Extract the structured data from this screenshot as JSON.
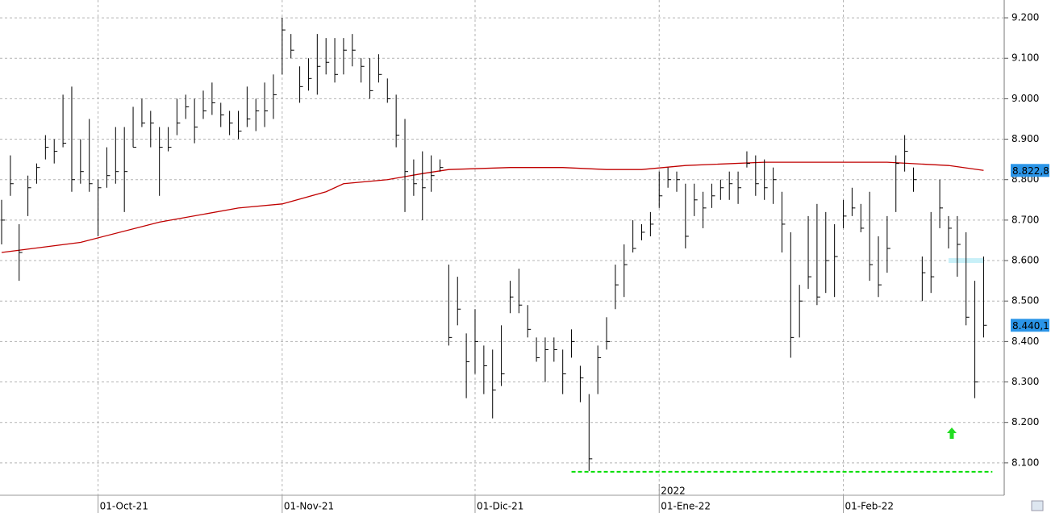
{
  "chart_data": {
    "type": "ohlc",
    "bar_color": "#000000",
    "categories": [
      null,
      null,
      null,
      null,
      null,
      null,
      null,
      null,
      null,
      null,
      null,
      "01-Oct-21",
      null,
      null,
      null,
      null,
      null,
      null,
      null,
      null,
      null,
      null,
      null,
      null,
      null,
      null,
      null,
      null,
      null,
      null,
      null,
      null,
      "01-Nov-21",
      null,
      null,
      null,
      null,
      null,
      null,
      null,
      null,
      null,
      null,
      null,
      null,
      null,
      null,
      null,
      null,
      null,
      null,
      null,
      null,
      null,
      "01-Dic-21",
      null,
      null,
      null,
      null,
      null,
      null,
      null,
      null,
      null,
      null,
      null,
      null,
      null,
      null,
      null,
      null,
      null,
      null,
      null,
      null,
      "01-Ene-22",
      null,
      null,
      null,
      null,
      null,
      null,
      null,
      null,
      null,
      null,
      null,
      null,
      null,
      null,
      null,
      null,
      null,
      null,
      null,
      null,
      "01-Feb-22",
      null,
      null,
      null,
      null,
      null,
      null,
      null,
      null,
      null,
      null,
      null,
      null,
      null,
      null,
      null,
      null
    ],
    "year_label": "2022",
    "high": [
      8750,
      8860,
      8690,
      8810,
      8840,
      8910,
      8900,
      9010,
      9030,
      8900,
      8950,
      8800,
      8880,
      8930,
      8930,
      8980,
      9000,
      8970,
      8930,
      8930,
      9000,
      9010,
      9000,
      9020,
      9040,
      8990,
      8970,
      8970,
      9030,
      9000,
      9040,
      9060,
      9200,
      9160,
      9080,
      9100,
      9160,
      9150,
      9150,
      9150,
      9160,
      9100,
      9100,
      9110,
      9050,
      9010,
      8950,
      8850,
      8870,
      8860,
      8850,
      8590,
      8560,
      8420,
      8480,
      8390,
      8380,
      8440,
      8550,
      8580,
      8490,
      8410,
      8410,
      8410,
      8380,
      8430,
      8340,
      8270,
      8390,
      8460,
      8590,
      8640,
      8700,
      8690,
      8720,
      8820,
      8830,
      8820,
      8790,
      8790,
      8770,
      8790,
      8800,
      8820,
      8820,
      8870,
      8860,
      8850,
      8830,
      8770,
      8670,
      8540,
      8710,
      8740,
      8720,
      8690,
      8750,
      8780,
      8740,
      8770,
      8660,
      8710,
      8860,
      8910,
      8830,
      8610,
      8720,
      8800,
      8710,
      8710,
      8670,
      8550,
      8610
    ],
    "low": [
      8640,
      8760,
      8550,
      8710,
      8790,
      8850,
      8840,
      8880,
      8770,
      8790,
      8770,
      8660,
      8780,
      8790,
      8720,
      8880,
      8930,
      8880,
      8760,
      8870,
      8910,
      8950,
      8890,
      8950,
      8960,
      8930,
      8910,
      8900,
      8930,
      8920,
      8930,
      8950,
      9060,
      9100,
      8990,
      9020,
      9010,
      9060,
      9040,
      9060,
      9080,
      9040,
      9000,
      9040,
      8990,
      8880,
      8720,
      8760,
      8700,
      8770,
      8820,
      8390,
      8440,
      8260,
      8320,
      8270,
      8210,
      8290,
      8470,
      8470,
      8410,
      8350,
      8300,
      8350,
      8270,
      8360,
      8250,
      8080,
      8270,
      8380,
      8480,
      8510,
      8620,
      8650,
      8660,
      8730,
      8780,
      8770,
      8630,
      8710,
      8680,
      8730,
      8750,
      8750,
      8740,
      8830,
      8760,
      8750,
      8740,
      8620,
      8360,
      8410,
      8530,
      8490,
      8520,
      8510,
      8680,
      8710,
      8670,
      8550,
      8510,
      8570,
      8720,
      8820,
      8770,
      8500,
      8520,
      8680,
      8630,
      8560,
      8440,
      8260,
      8410
    ],
    "close": [
      8700,
      8790,
      8620,
      8780,
      8830,
      8880,
      8870,
      8890,
      8800,
      8820,
      8790,
      8780,
      8810,
      8820,
      8820,
      8880,
      8940,
      8940,
      8880,
      8880,
      8940,
      8980,
      8930,
      8970,
      8990,
      8960,
      8940,
      8920,
      8950,
      8970,
      8970,
      9010,
      9170,
      9120,
      9030,
      9050,
      9080,
      9090,
      9060,
      9120,
      9120,
      9080,
      9020,
      9060,
      9000,
      8910,
      8820,
      8790,
      8780,
      8810,
      8830,
      8410,
      8480,
      8350,
      8400,
      8340,
      8280,
      8320,
      8510,
      8490,
      8430,
      8360,
      8380,
      8380,
      8320,
      8400,
      8310,
      8110,
      8360,
      8400,
      8540,
      8590,
      8630,
      8670,
      8690,
      8760,
      8800,
      8800,
      8660,
      8750,
      8730,
      8760,
      8780,
      8790,
      8780,
      8840,
      8790,
      8780,
      8800,
      8690,
      8410,
      8500,
      8560,
      8510,
      8600,
      8610,
      8710,
      8730,
      8680,
      8590,
      8540,
      8630,
      8840,
      8870,
      8800,
      8570,
      8560,
      8730,
      8680,
      8640,
      8460,
      8300,
      8440.1
    ],
    "moving_average": {
      "color": "#c00000",
      "x": [
        0,
        9,
        18,
        27,
        32,
        37,
        39,
        44,
        48,
        51,
        58,
        64,
        69,
        73,
        78,
        87,
        101,
        108,
        112
      ],
      "values": [
        8620,
        8645,
        8695,
        8730,
        8740,
        8770,
        8790,
        8800,
        8815,
        8825,
        8830,
        8830,
        8825,
        8825,
        8835,
        8843,
        8843,
        8835,
        8822.8
      ]
    },
    "support": {
      "color": "#00dd00",
      "value": 8078,
      "from": 65,
      "to": 113
    },
    "zone": {
      "color": "#c8f0f8",
      "value": 8600,
      "from": 108,
      "to": 112
    },
    "price_labels": [
      {
        "value": 8822.8,
        "label": "8.822,8"
      },
      {
        "value": 8440.1,
        "label": "8.440,1"
      }
    ],
    "price_label_color": "#2b95e8",
    "ylim": [
      8020,
      9244
    ],
    "yticks": [
      {
        "value": 8100,
        "label": "8.100"
      },
      {
        "value": 8200,
        "label": "8.200"
      },
      {
        "value": 8300,
        "label": "8.300"
      },
      {
        "value": 8400,
        "label": "8.400"
      },
      {
        "value": 8500,
        "label": "8.500"
      },
      {
        "value": 8600,
        "label": "8.600"
      },
      {
        "value": 8700,
        "label": "8.700"
      },
      {
        "value": 8800,
        "label": "8.800"
      },
      {
        "value": 8900,
        "label": "8.900"
      },
      {
        "value": 9000,
        "label": "9.000"
      },
      {
        "value": 9100,
        "label": "9.100"
      },
      {
        "value": 9200,
        "label": "9.200"
      }
    ],
    "grid": true
  }
}
